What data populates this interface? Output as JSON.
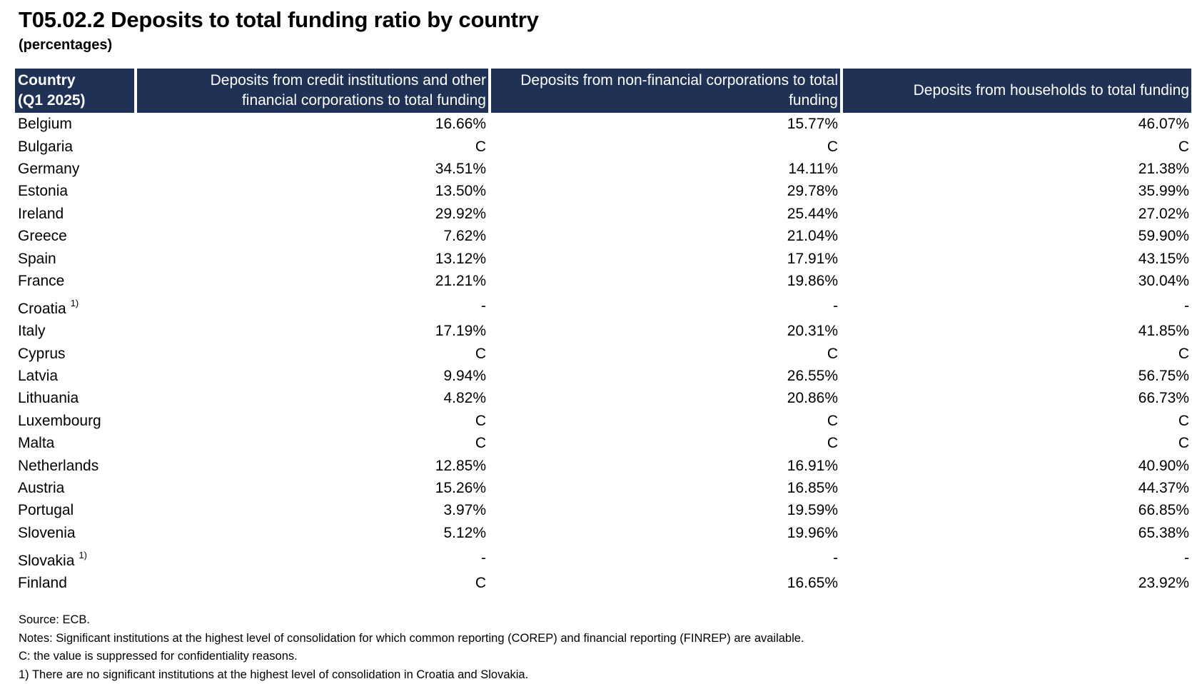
{
  "title": "T05.02.2 Deposits to total funding ratio by country",
  "subtitle": "(percentages)",
  "colors": {
    "header_bg": "#1f3154",
    "header_text": "#ffffff",
    "body_text": "#000000"
  },
  "table": {
    "headers": [
      "Country\n(Q1 2025)",
      "Deposits from credit institutions and other financial corporations to total funding",
      "Deposits from non-financial corporations to total funding",
      "Deposits from households to total funding"
    ],
    "header_country_line1": "Country",
    "header_country_line2": "(Q1 2025)",
    "header_col1_line1": "Deposits from credit institutions and other",
    "header_col1_line2": "financial corporations to total funding",
    "header_col2_line1": "Deposits from non-financial corporations to total",
    "header_col2_line2": "funding",
    "header_col3": "Deposits from households to total funding",
    "rows": [
      {
        "country": "Belgium",
        "footnote": "",
        "credit_fin": "16.66%",
        "nonfin_corp": "15.77%",
        "households": "46.07%"
      },
      {
        "country": "Bulgaria",
        "footnote": "",
        "credit_fin": "C",
        "nonfin_corp": "C",
        "households": "C"
      },
      {
        "country": "Germany",
        "footnote": "",
        "credit_fin": "34.51%",
        "nonfin_corp": "14.11%",
        "households": "21.38%"
      },
      {
        "country": "Estonia",
        "footnote": "",
        "credit_fin": "13.50%",
        "nonfin_corp": "29.78%",
        "households": "35.99%"
      },
      {
        "country": "Ireland",
        "footnote": "",
        "credit_fin": "29.92%",
        "nonfin_corp": "25.44%",
        "households": "27.02%"
      },
      {
        "country": "Greece",
        "footnote": "",
        "credit_fin": "7.62%",
        "nonfin_corp": "21.04%",
        "households": "59.90%"
      },
      {
        "country": "Spain",
        "footnote": "",
        "credit_fin": "13.12%",
        "nonfin_corp": "17.91%",
        "households": "43.15%"
      },
      {
        "country": "France",
        "footnote": "",
        "credit_fin": "21.21%",
        "nonfin_corp": "19.86%",
        "households": "30.04%"
      },
      {
        "country": "Croatia",
        "footnote": "1)",
        "credit_fin": "-",
        "nonfin_corp": "-",
        "households": "-"
      },
      {
        "country": "Italy",
        "footnote": "",
        "credit_fin": "17.19%",
        "nonfin_corp": "20.31%",
        "households": "41.85%"
      },
      {
        "country": "Cyprus",
        "footnote": "",
        "credit_fin": "C",
        "nonfin_corp": "C",
        "households": "C"
      },
      {
        "country": "Latvia",
        "footnote": "",
        "credit_fin": "9.94%",
        "nonfin_corp": "26.55%",
        "households": "56.75%"
      },
      {
        "country": "Lithuania",
        "footnote": "",
        "credit_fin": "4.82%",
        "nonfin_corp": "20.86%",
        "households": "66.73%"
      },
      {
        "country": "Luxembourg",
        "footnote": "",
        "credit_fin": "C",
        "nonfin_corp": "C",
        "households": "C"
      },
      {
        "country": "Malta",
        "footnote": "",
        "credit_fin": "C",
        "nonfin_corp": "C",
        "households": "C"
      },
      {
        "country": "Netherlands",
        "footnote": "",
        "credit_fin": "12.85%",
        "nonfin_corp": "16.91%",
        "households": "40.90%"
      },
      {
        "country": "Austria",
        "footnote": "",
        "credit_fin": "15.26%",
        "nonfin_corp": "16.85%",
        "households": "44.37%"
      },
      {
        "country": "Portugal",
        "footnote": "",
        "credit_fin": "3.97%",
        "nonfin_corp": "19.59%",
        "households": "66.85%"
      },
      {
        "country": "Slovenia",
        "footnote": "",
        "credit_fin": "5.12%",
        "nonfin_corp": "19.96%",
        "households": "65.38%"
      },
      {
        "country": "Slovakia",
        "footnote": "1)",
        "credit_fin": "-",
        "nonfin_corp": "-",
        "households": "-"
      },
      {
        "country": "Finland",
        "footnote": "",
        "credit_fin": "C",
        "nonfin_corp": "16.65%",
        "households": "23.92%"
      }
    ]
  },
  "notes": [
    "Source: ECB.",
    "Notes: Significant institutions at the highest level of consolidation for which common reporting (COREP) and financial reporting (FINREP) are available.",
    "C: the value is suppressed for confidentiality reasons.",
    "1) There are no significant institutions at the highest level of consolidation in Croatia and Slovakia."
  ]
}
